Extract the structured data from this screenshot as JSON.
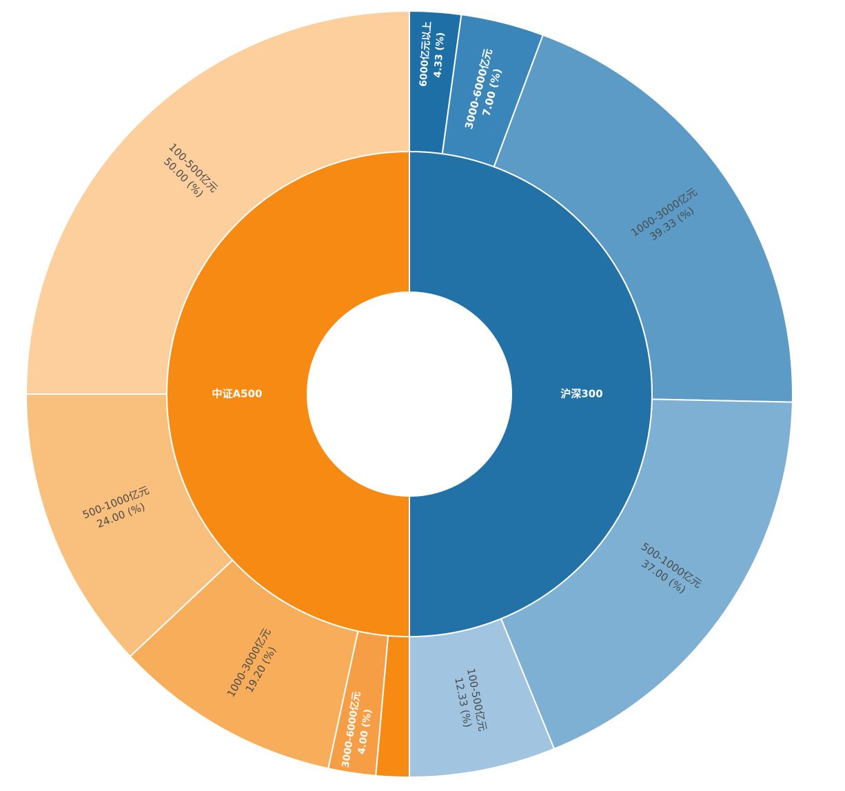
{
  "chart_data": {
    "type": "sunburst",
    "title": "",
    "unit": "(%)",
    "inner": [
      {
        "name": "沪深300",
        "value": 100,
        "color": "#2272a8"
      },
      {
        "name": "中证A500",
        "value": 100,
        "color": "#f68a12"
      }
    ],
    "outer": [
      {
        "parent": "沪深300",
        "name": "6000亿元以上",
        "value": 4.33,
        "label": "4.33 (%)",
        "color": "#1e6fa6"
      },
      {
        "parent": "沪深300",
        "name": "3000-6000亿元",
        "value": 7.0,
        "label": "7.00 (%)",
        "color": "#3a85ba"
      },
      {
        "parent": "沪深300",
        "name": "1000-3000亿元",
        "value": 39.33,
        "label": "39.33 (%)",
        "color": "#5c9bc6"
      },
      {
        "parent": "沪深300",
        "name": "500-1000亿元",
        "value": 37.0,
        "label": "37.00 (%)",
        "color": "#7eb0d3"
      },
      {
        "parent": "沪深300",
        "name": "100-500亿元",
        "value": 12.33,
        "label": "12.33 (%)",
        "color": "#a1c5e0"
      },
      {
        "parent": "中证A500",
        "name": "",
        "value": 2.8,
        "label": "",
        "color": "#f68a12"
      },
      {
        "parent": "中证A500",
        "name": "3000-6000亿元",
        "value": 4.0,
        "label": "4.00 (%)",
        "color": "#f69e45"
      },
      {
        "parent": "中证A500",
        "name": "1000-3000亿元",
        "value": 19.2,
        "label": "19.20 (%)",
        "color": "#f7ad5a"
      },
      {
        "parent": "中证A500",
        "name": "500-1000亿元",
        "value": 24.0,
        "label": "24.00 (%)",
        "color": "#f9bf7c"
      },
      {
        "parent": "中证A500",
        "name": "100-500亿元",
        "value": 50.0,
        "label": "50.00 (%)",
        "color": "#fccf9d"
      }
    ]
  }
}
